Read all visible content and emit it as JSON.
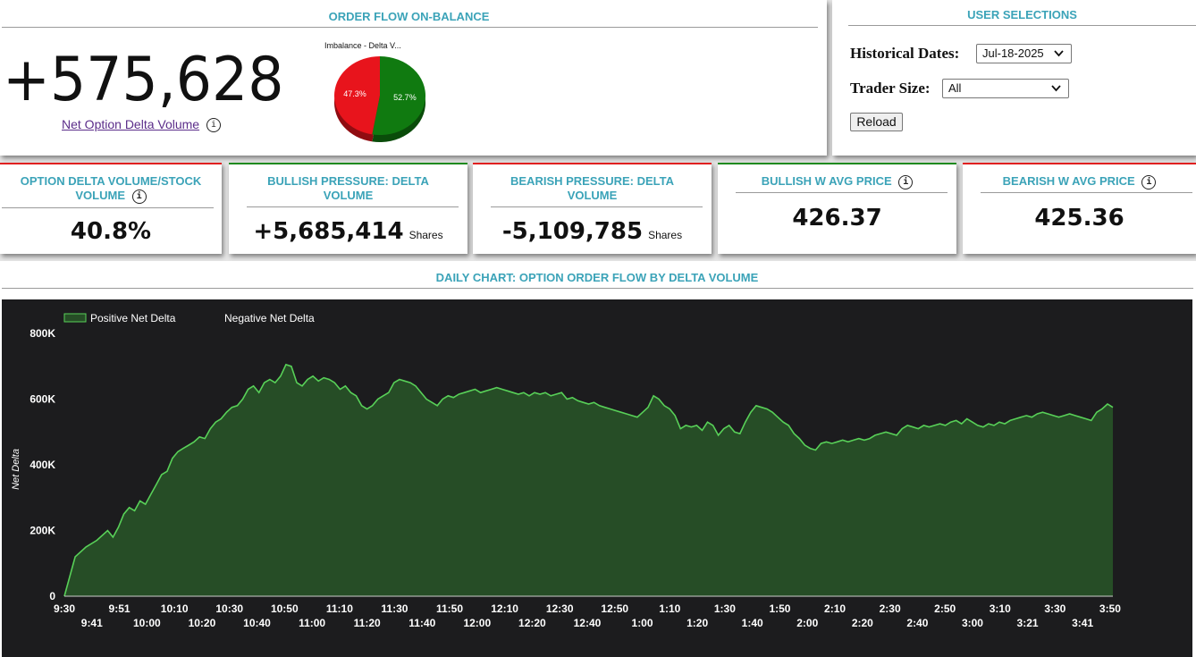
{
  "order_flow": {
    "title": "ORDER FLOW ON-BALANCE",
    "net_value": "+575,628",
    "net_label": "Net Option Delta Volume",
    "pie_title": "Imbalance - Delta V...",
    "pie": [
      {
        "label": "47.3%",
        "value": 47.3,
        "color": "#e8141c"
      },
      {
        "label": "52.7%",
        "value": 52.7,
        "color": "#107a10"
      }
    ]
  },
  "user_selections": {
    "title": "USER SELECTIONS",
    "dates_label": "Historical Dates:",
    "dates_value": "Jul-18-2025",
    "trader_label": "Trader Size:",
    "trader_value": "All",
    "reload_label": "Reload"
  },
  "kpis": [
    {
      "title": "OPTION DELTA VOLUME/STOCK VOLUME",
      "value": "40.8%",
      "unit": "",
      "accent": "#e02020"
    },
    {
      "title": "BULLISH PRESSURE: DELTA VOLUME",
      "value": "+5,685,414",
      "unit": "Shares",
      "accent": "#1f8a1f"
    },
    {
      "title": "BEARISH PRESSURE: DELTA VOLUME",
      "value": "-5,109,785",
      "unit": "Shares",
      "accent": "#e02020"
    },
    {
      "title": "BULLISH W AVG PRICE",
      "value": "426.37",
      "unit": "",
      "accent": "#1f8a1f"
    },
    {
      "title": "BEARISH W AVG PRICE",
      "value": "425.36",
      "unit": "",
      "accent": "#e02020"
    }
  ],
  "info_glyph": "i",
  "daily_chart": {
    "title": "DAILY CHART: OPTION ORDER FLOW BY DELTA VOLUME"
  },
  "chart_data": {
    "type": "area",
    "ylabel": "Net Delta",
    "ylim": [
      0,
      800000
    ],
    "yticks": [
      0,
      200000,
      400000,
      600000,
      800000
    ],
    "ytick_labels": [
      "0",
      "200K",
      "400K",
      "600K",
      "800K"
    ],
    "legend": [
      "Positive Net Delta",
      "Negative Net Delta"
    ],
    "legend_placement": "top-left",
    "background": "#1c1c1e",
    "fill_color": "#264d26",
    "line_color": "#58d058",
    "xtick_labels_top": [
      "9:30",
      "9:51",
      "10:10",
      "10:30",
      "10:50",
      "11:10",
      "11:30",
      "11:50",
      "12:10",
      "12:30",
      "12:50",
      "1:10",
      "1:30",
      "1:50",
      "2:10",
      "2:30",
      "2:50",
      "3:10",
      "3:30",
      "3:50"
    ],
    "xtick_labels_bottom": [
      "9:41",
      "10:00",
      "10:20",
      "10:40",
      "11:00",
      "11:20",
      "11:40",
      "12:00",
      "12:20",
      "12:40",
      "1:00",
      "1:20",
      "1:40",
      "2:00",
      "2:20",
      "2:40",
      "3:00",
      "3:21",
      "3:41"
    ],
    "series": [
      {
        "name": "Positive Net Delta",
        "points": [
          [
            0,
            0
          ],
          [
            2,
            120000
          ],
          [
            4,
            150000
          ],
          [
            6,
            170000
          ],
          [
            8,
            200000
          ],
          [
            9,
            180000
          ],
          [
            10,
            210000
          ],
          [
            11,
            250000
          ],
          [
            12,
            270000
          ],
          [
            13,
            260000
          ],
          [
            14,
            290000
          ],
          [
            15,
            280000
          ],
          [
            16,
            310000
          ],
          [
            17,
            340000
          ],
          [
            18,
            370000
          ],
          [
            19,
            380000
          ],
          [
            20,
            420000
          ],
          [
            21,
            440000
          ],
          [
            22,
            450000
          ],
          [
            23,
            460000
          ],
          [
            24,
            470000
          ],
          [
            25,
            485000
          ],
          [
            26,
            480000
          ],
          [
            27,
            510000
          ],
          [
            28,
            530000
          ],
          [
            29,
            540000
          ],
          [
            30,
            560000
          ],
          [
            31,
            575000
          ],
          [
            32,
            580000
          ],
          [
            33,
            600000
          ],
          [
            34,
            630000
          ],
          [
            35,
            640000
          ],
          [
            36,
            620000
          ],
          [
            37,
            650000
          ],
          [
            38,
            660000
          ],
          [
            39,
            650000
          ],
          [
            40,
            670000
          ],
          [
            41,
            705000
          ],
          [
            42,
            700000
          ],
          [
            43,
            650000
          ],
          [
            44,
            640000
          ],
          [
            45,
            660000
          ],
          [
            46,
            670000
          ],
          [
            47,
            655000
          ],
          [
            48,
            665000
          ],
          [
            49,
            660000
          ],
          [
            50,
            650000
          ],
          [
            51,
            630000
          ],
          [
            52,
            640000
          ],
          [
            53,
            620000
          ],
          [
            54,
            610000
          ],
          [
            55,
            580000
          ],
          [
            56,
            570000
          ],
          [
            57,
            580000
          ],
          [
            58,
            600000
          ],
          [
            59,
            610000
          ],
          [
            60,
            620000
          ],
          [
            61,
            650000
          ],
          [
            62,
            660000
          ],
          [
            63,
            655000
          ],
          [
            64,
            650000
          ],
          [
            65,
            640000
          ],
          [
            66,
            620000
          ],
          [
            67,
            600000
          ],
          [
            68,
            590000
          ],
          [
            69,
            580000
          ],
          [
            70,
            600000
          ],
          [
            71,
            610000
          ],
          [
            72,
            605000
          ],
          [
            73,
            615000
          ],
          [
            74,
            620000
          ],
          [
            75,
            625000
          ],
          [
            76,
            630000
          ],
          [
            77,
            620000
          ],
          [
            78,
            625000
          ],
          [
            79,
            630000
          ],
          [
            80,
            635000
          ],
          [
            81,
            630000
          ],
          [
            82,
            625000
          ],
          [
            83,
            620000
          ],
          [
            84,
            615000
          ],
          [
            85,
            620000
          ],
          [
            86,
            610000
          ],
          [
            87,
            620000
          ],
          [
            88,
            615000
          ],
          [
            89,
            620000
          ],
          [
            90,
            610000
          ],
          [
            91,
            615000
          ],
          [
            92,
            620000
          ],
          [
            93,
            600000
          ],
          [
            94,
            605000
          ],
          [
            95,
            595000
          ],
          [
            96,
            590000
          ],
          [
            97,
            585000
          ],
          [
            98,
            590000
          ],
          [
            99,
            580000
          ],
          [
            100,
            575000
          ],
          [
            101,
            570000
          ],
          [
            102,
            565000
          ],
          [
            103,
            560000
          ],
          [
            104,
            555000
          ],
          [
            105,
            550000
          ],
          [
            106,
            545000
          ],
          [
            107,
            560000
          ],
          [
            108,
            575000
          ],
          [
            109,
            610000
          ],
          [
            110,
            600000
          ],
          [
            111,
            580000
          ],
          [
            112,
            570000
          ],
          [
            113,
            550000
          ],
          [
            114,
            510000
          ],
          [
            115,
            520000
          ],
          [
            116,
            515000
          ],
          [
            117,
            520000
          ],
          [
            118,
            505000
          ],
          [
            119,
            530000
          ],
          [
            120,
            520000
          ],
          [
            121,
            490000
          ],
          [
            122,
            510000
          ],
          [
            123,
            520000
          ],
          [
            124,
            500000
          ],
          [
            125,
            495000
          ],
          [
            126,
            530000
          ],
          [
            127,
            560000
          ],
          [
            128,
            580000
          ],
          [
            129,
            575000
          ],
          [
            130,
            570000
          ],
          [
            131,
            560000
          ],
          [
            132,
            545000
          ],
          [
            133,
            530000
          ],
          [
            134,
            520000
          ],
          [
            135,
            495000
          ],
          [
            136,
            480000
          ],
          [
            137,
            460000
          ],
          [
            138,
            450000
          ],
          [
            139,
            445000
          ],
          [
            140,
            465000
          ],
          [
            141,
            470000
          ],
          [
            142,
            465000
          ],
          [
            143,
            470000
          ],
          [
            144,
            475000
          ],
          [
            145,
            470000
          ],
          [
            146,
            475000
          ],
          [
            147,
            480000
          ],
          [
            148,
            475000
          ],
          [
            149,
            480000
          ],
          [
            150,
            490000
          ],
          [
            151,
            495000
          ],
          [
            152,
            500000
          ],
          [
            153,
            495000
          ],
          [
            154,
            490000
          ],
          [
            155,
            510000
          ],
          [
            156,
            520000
          ],
          [
            157,
            515000
          ],
          [
            158,
            510000
          ],
          [
            159,
            520000
          ],
          [
            160,
            515000
          ],
          [
            161,
            520000
          ],
          [
            162,
            525000
          ],
          [
            163,
            520000
          ],
          [
            164,
            530000
          ],
          [
            165,
            535000
          ],
          [
            166,
            525000
          ],
          [
            167,
            540000
          ],
          [
            168,
            530000
          ],
          [
            169,
            520000
          ],
          [
            170,
            515000
          ],
          [
            171,
            525000
          ],
          [
            172,
            520000
          ],
          [
            173,
            530000
          ],
          [
            174,
            525000
          ],
          [
            175,
            535000
          ],
          [
            176,
            540000
          ],
          [
            177,
            545000
          ],
          [
            178,
            550000
          ],
          [
            179,
            545000
          ],
          [
            180,
            555000
          ],
          [
            181,
            560000
          ],
          [
            182,
            555000
          ],
          [
            183,
            550000
          ],
          [
            184,
            545000
          ],
          [
            185,
            550000
          ],
          [
            186,
            555000
          ],
          [
            187,
            550000
          ],
          [
            188,
            545000
          ],
          [
            189,
            540000
          ],
          [
            190,
            535000
          ],
          [
            191,
            560000
          ],
          [
            192,
            570000
          ],
          [
            193,
            585000
          ],
          [
            194,
            575000
          ]
        ]
      },
      {
        "name": "Negative Net Delta",
        "points": []
      }
    ]
  }
}
